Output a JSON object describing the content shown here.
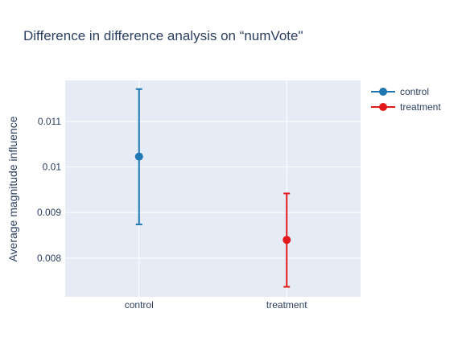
{
  "chart_data": {
    "type": "scatter",
    "title": "Difference in difference analysis on “numVote\"",
    "xlabel": "",
    "ylabel": "Average magnitude influence",
    "categories": [
      "control",
      "treatment"
    ],
    "ylim": [
      0.00715,
      0.0119
    ],
    "yticks": [
      "0.008",
      "0.009",
      "0.01",
      "0.011"
    ],
    "yticks_values": [
      0.008,
      0.009,
      0.01,
      0.011
    ],
    "grid": true,
    "legend_position": "top-right",
    "series": [
      {
        "name": "control",
        "color": "#1f77b4",
        "category": "control",
        "value": 0.01023,
        "error_high": 0.01171,
        "error_low": 0.00874
      },
      {
        "name": "treatment",
        "color": "#e31a1c",
        "category": "treatment",
        "value": 0.0084,
        "error_high": 0.00942,
        "error_low": 0.00737
      }
    ]
  }
}
